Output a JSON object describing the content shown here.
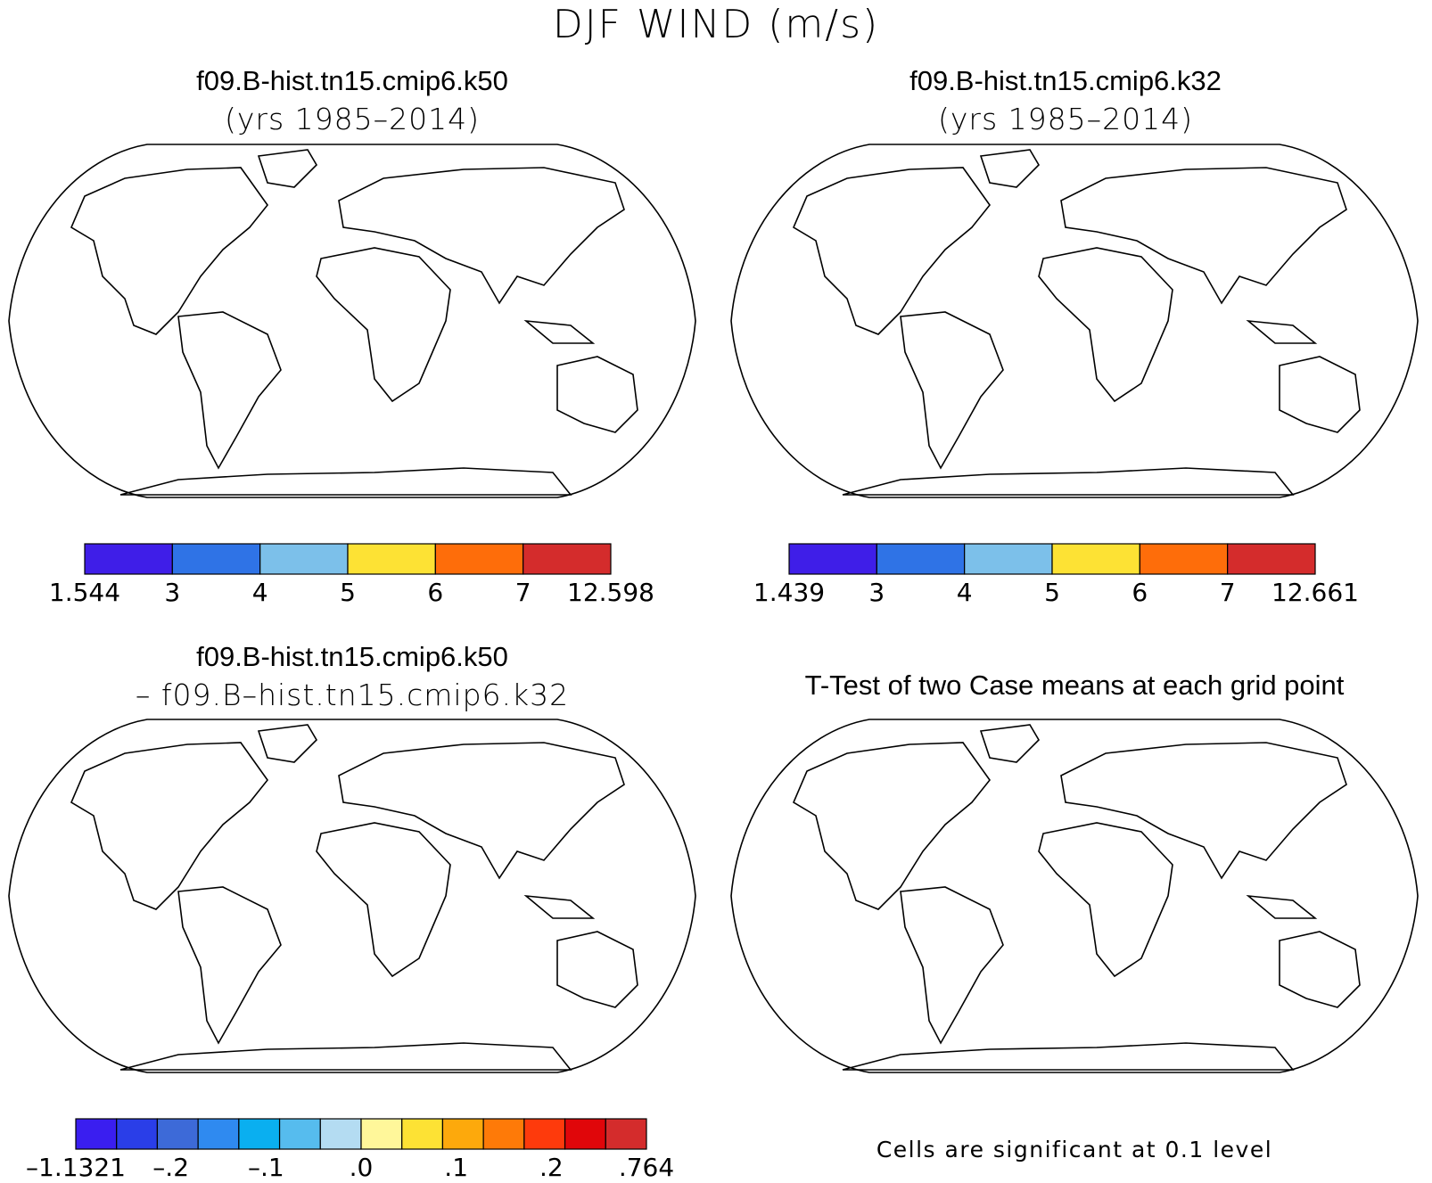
{
  "title": "DJF WIND (m/s)",
  "panels": [
    {
      "id": "k50",
      "title": "f09.B-hist.tn15.cmip6.k50",
      "subtitle": "(yrs 1985–2014)",
      "colorbar": {
        "labels": [
          "1.544",
          "3",
          "4",
          "5",
          "6",
          "7",
          "12.598"
        ],
        "colors": [
          "#3f1ee8",
          "#2f73e6",
          "#7cc0ea",
          "#fde234",
          "#fe6d0a",
          "#d42c2c"
        ]
      }
    },
    {
      "id": "k32",
      "title": "f09.B-hist.tn15.cmip6.k32",
      "subtitle": "(yrs 1985–2014)",
      "colorbar": {
        "labels": [
          "1.439",
          "3",
          "4",
          "5",
          "6",
          "7",
          "12.661"
        ],
        "colors": [
          "#3f1ee8",
          "#2f73e6",
          "#7cc0ea",
          "#fde234",
          "#fe6d0a",
          "#d42c2c"
        ]
      }
    },
    {
      "id": "diff",
      "title": "f09.B-hist.tn15.cmip6.k50",
      "subtitle": "– f09.B–hist.tn15.cmip6.k32",
      "colorbar": {
        "labels": [
          "–1.1321",
          "–.2",
          "–.1",
          ".0",
          ".1",
          ".2",
          ".764"
        ],
        "colors": [
          "#3a1ef0",
          "#2a3ee8",
          "#3d6ad8",
          "#2f8af0",
          "#0aaff0",
          "#56bcee",
          "#b4dcf2",
          "#fff79a",
          "#fde234",
          "#fda90c",
          "#fe7a08",
          "#fe3a0c",
          "#e0060a",
          "#d42c2c"
        ]
      }
    },
    {
      "id": "ttest",
      "title": "T-Test of two Case means at each grid point",
      "note": "Cells are significant at 0.1 level",
      "sig_color": "#ff0000"
    }
  ]
}
